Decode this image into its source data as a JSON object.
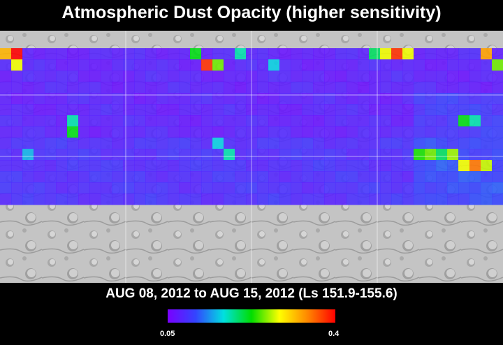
{
  "title": "Atmospheric Dust Opacity (higher sensitivity)",
  "date_range": "AUG 08, 2012 to AUG 15, 2012 (Ls 151.9-155.6)",
  "colorbar": {
    "min_label": "0.05",
    "max_label": "0.4",
    "min": 0.05,
    "max": 0.4,
    "stops": [
      "#7a00ff",
      "#3344ff",
      "#00e0e0",
      "#00dd00",
      "#ffff00",
      "#ff8800",
      "#ff0000"
    ]
  },
  "map": {
    "base_color": "#bcbcbc",
    "grid_color": "#ffffff",
    "background_opacity": 0.08
  },
  "chart_data": {
    "type": "heatmap",
    "title": "Atmospheric Dust Opacity (higher sensitivity)",
    "subtitle": "AUG 08, 2012 to AUG 15, 2012 (Ls 151.9-155.6)",
    "value_range": [
      0.05,
      0.4
    ],
    "hotspots": [
      {
        "col": 0,
        "row": 0,
        "value": 0.32
      },
      {
        "col": 1,
        "row": 0,
        "value": 0.4
      },
      {
        "col": 1,
        "row": 1,
        "value": 0.28
      },
      {
        "col": 17,
        "row": 0,
        "value": 0.22
      },
      {
        "col": 18,
        "row": 1,
        "value": 0.38
      },
      {
        "col": 19,
        "row": 1,
        "value": 0.25
      },
      {
        "col": 21,
        "row": 0,
        "value": 0.18
      },
      {
        "col": 24,
        "row": 1,
        "value": 0.16
      },
      {
        "col": 33,
        "row": 0,
        "value": 0.2
      },
      {
        "col": 34,
        "row": 0,
        "value": 0.28
      },
      {
        "col": 35,
        "row": 0,
        "value": 0.38
      },
      {
        "col": 36,
        "row": 0,
        "value": 0.28
      },
      {
        "col": 43,
        "row": 0,
        "value": 0.33
      },
      {
        "col": 44,
        "row": 1,
        "value": 0.25
      },
      {
        "col": 6,
        "row": 6,
        "value": 0.18
      },
      {
        "col": 6,
        "row": 7,
        "value": 0.22
      },
      {
        "col": 41,
        "row": 6,
        "value": 0.22
      },
      {
        "col": 42,
        "row": 6,
        "value": 0.18
      },
      {
        "col": 2,
        "row": 9,
        "value": 0.15
      },
      {
        "col": 19,
        "row": 8,
        "value": 0.16
      },
      {
        "col": 20,
        "row": 9,
        "value": 0.18
      },
      {
        "col": 37,
        "row": 9,
        "value": 0.23
      },
      {
        "col": 38,
        "row": 9,
        "value": 0.25
      },
      {
        "col": 39,
        "row": 9,
        "value": 0.2
      },
      {
        "col": 40,
        "row": 9,
        "value": 0.26
      },
      {
        "col": 41,
        "row": 10,
        "value": 0.28
      },
      {
        "col": 42,
        "row": 10,
        "value": 0.35
      },
      {
        "col": 43,
        "row": 10,
        "value": 0.27
      }
    ]
  }
}
